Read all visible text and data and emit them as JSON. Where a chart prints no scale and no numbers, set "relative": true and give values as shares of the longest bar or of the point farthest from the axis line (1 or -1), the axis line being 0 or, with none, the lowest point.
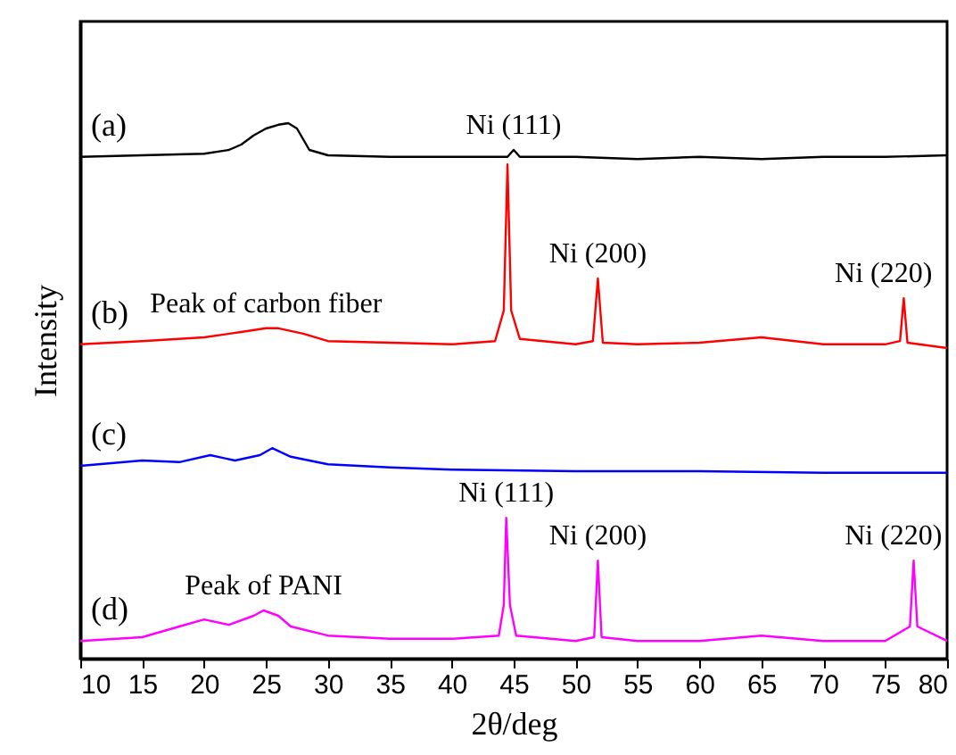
{
  "chart_data": {
    "type": "line",
    "xlabel": "2θ/deg",
    "ylabel": "Intensity",
    "relative": true,
    "tick_labels": "x",
    "legend": false,
    "grid": false,
    "marker": "none",
    "line_style": "solid",
    "xlim": [
      10,
      80
    ],
    "xticks": [
      10,
      15,
      20,
      25,
      30,
      35,
      40,
      45,
      50,
      55,
      60,
      65,
      70,
      75,
      80
    ],
    "series": [
      {
        "name": "(a)",
        "color": "#000000",
        "x": [
          10,
          15,
          20,
          22,
          23,
          24,
          25,
          26,
          26.8,
          27.5,
          28,
          28.5,
          30,
          35,
          40,
          44.5,
          45,
          45.5,
          50,
          55,
          60,
          65,
          70,
          75,
          80
        ],
        "values": [
          0.937,
          0.94,
          0.943,
          0.95,
          0.96,
          0.977,
          0.99,
          0.997,
          1.0,
          0.99,
          0.97,
          0.95,
          0.94,
          0.937,
          0.937,
          0.937,
          0.95,
          0.937,
          0.937,
          0.933,
          0.937,
          0.933,
          0.937,
          0.937,
          0.94
        ]
      },
      {
        "name": "(b)",
        "color": "#ff0000",
        "x": [
          10,
          15,
          20,
          23,
          25,
          26,
          28,
          30,
          35,
          40,
          43.5,
          44.2,
          44.5,
          44.8,
          45.5,
          50,
          51.4,
          51.8,
          52.2,
          55,
          60,
          65,
          70,
          75,
          76.2,
          76.5,
          76.8,
          80
        ],
        "values": [
          0.587,
          0.593,
          0.6,
          0.61,
          0.617,
          0.617,
          0.607,
          0.593,
          0.59,
          0.587,
          0.593,
          0.65,
          0.923,
          0.65,
          0.597,
          0.587,
          0.593,
          0.71,
          0.59,
          0.587,
          0.59,
          0.6,
          0.587,
          0.587,
          0.593,
          0.673,
          0.59,
          0.58
        ]
      },
      {
        "name": "(c)",
        "color": "#0000ff",
        "x": [
          10,
          15,
          18,
          20.5,
          22.5,
          24.5,
          25.5,
          27,
          30,
          35,
          40,
          50,
          60,
          70,
          80
        ],
        "values": [
          0.36,
          0.37,
          0.367,
          0.38,
          0.37,
          0.38,
          0.393,
          0.377,
          0.363,
          0.357,
          0.353,
          0.35,
          0.35,
          0.347,
          0.347
        ]
      },
      {
        "name": "(d)",
        "color": "#ff00ff",
        "x": [
          10,
          15,
          18,
          20,
          22,
          24,
          24.8,
          26,
          27,
          30,
          35,
          40,
          43.8,
          44.2,
          44.4,
          44.7,
          45.2,
          50,
          51.5,
          51.8,
          52.1,
          55,
          60,
          65,
          70,
          75,
          77,
          77.3,
          77.6,
          80
        ],
        "values": [
          0.033,
          0.04,
          0.06,
          0.073,
          0.063,
          0.08,
          0.09,
          0.08,
          0.06,
          0.043,
          0.037,
          0.037,
          0.043,
          0.1,
          0.263,
          0.1,
          0.043,
          0.033,
          0.04,
          0.183,
          0.04,
          0.033,
          0.033,
          0.043,
          0.033,
          0.033,
          0.06,
          0.183,
          0.06,
          0.033
        ]
      }
    ],
    "annotations": [
      {
        "text": "Ni (111)",
        "x": 45,
        "y": 0.95
      },
      {
        "text": "Peak of carbon fiber",
        "x": 25,
        "y": 0.617
      },
      {
        "text": "Ni (200)",
        "x": 51.8,
        "y": 0.71
      },
      {
        "text": "Ni (220)",
        "x": 76.5,
        "y": 0.673
      },
      {
        "text": "Ni (111)",
        "x": 44.4,
        "y": 0.263
      },
      {
        "text": "Peak of PANI",
        "x": 24.8,
        "y": 0.09
      },
      {
        "text": "Ni (200)",
        "x": 51.8,
        "y": 0.183
      },
      {
        "text": "Ni (220)",
        "x": 77.3,
        "y": 0.183
      }
    ]
  }
}
